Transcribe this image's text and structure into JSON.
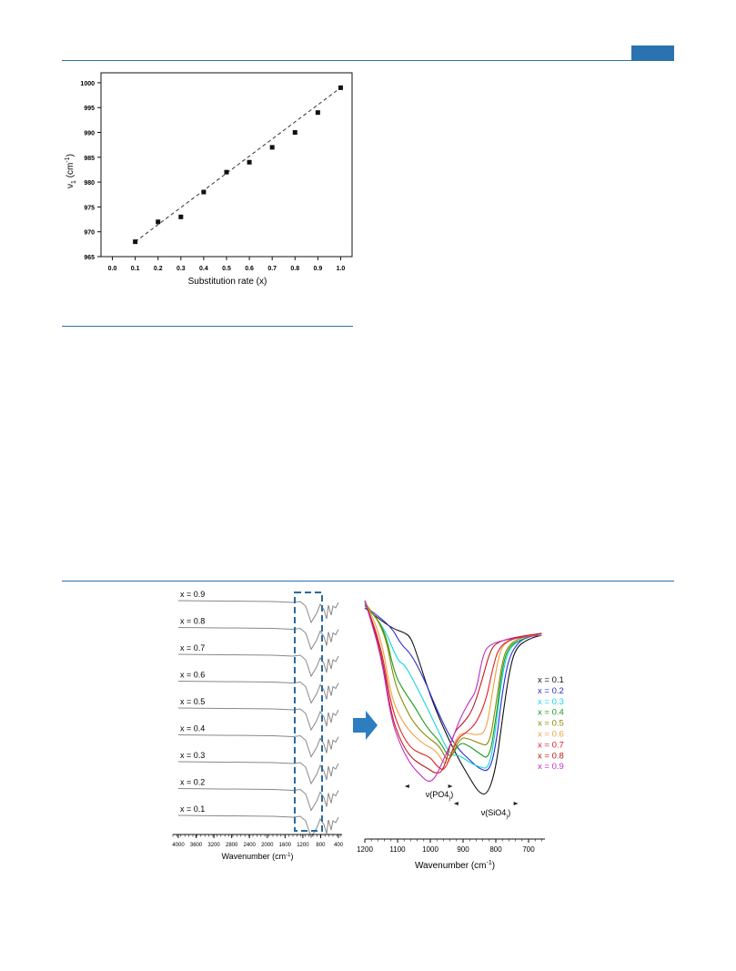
{
  "header": {
    "accent_color": "#2a73b0"
  },
  "figure_top": {
    "chart_data": {
      "type": "scatter",
      "ylabel": "ν1 (cm-1)",
      "xlabel": "Substitution rate (x)",
      "x": [
        0.1,
        0.2,
        0.3,
        0.4,
        0.5,
        0.6,
        0.7,
        0.8,
        0.9,
        1.0
      ],
      "y": [
        968,
        972,
        973,
        978,
        982,
        984,
        987,
        990,
        994,
        999
      ],
      "fit_line": {
        "x": [
          0.1,
          1.0
        ],
        "y": [
          968,
          999
        ],
        "style": "dashed"
      },
      "xlim": [
        0.0,
        1.0
      ],
      "ylim": [
        965,
        1000
      ],
      "xticks": [
        "0.0",
        "0.1",
        "0.2",
        "0.3",
        "0.4",
        "0.5",
        "0.6",
        "0.7",
        "0.8",
        "0.9",
        "1.0"
      ],
      "yticks": [
        "965",
        "970",
        "975",
        "980",
        "985",
        "990",
        "995",
        "1000"
      ]
    }
  },
  "figure_bottom": {
    "left_panel": {
      "chart_data": {
        "type": "line",
        "xlabel": "Wavenumber (cm-1)",
        "xticks": [
          "4000",
          "3600",
          "3200",
          "2800",
          "2400",
          "2000",
          "1600",
          "1200",
          "800",
          "400"
        ],
        "series": [
          {
            "name": "x = 0.9"
          },
          {
            "name": "x = 0.8"
          },
          {
            "name": "x = 0.7"
          },
          {
            "name": "x = 0.6"
          },
          {
            "name": "x = 0.5"
          },
          {
            "name": "x = 0.4"
          },
          {
            "name": "x = 0.3"
          },
          {
            "name": "x = 0.2"
          },
          {
            "name": "x = 0.1"
          }
        ],
        "highlight_box": {
          "from": 1200,
          "to": 700,
          "color": "#2a6a9c"
        }
      }
    },
    "arrow_color": "#2d7dc0",
    "right_panel": {
      "chart_data": {
        "type": "line",
        "xlabel": "Wavenumber (cm-1)",
        "xlim": [
          1200,
          650
        ],
        "xticks": [
          "1200",
          "1100",
          "1000",
          "900",
          "800",
          "700"
        ],
        "series": [
          {
            "name": "x = 0.1",
            "color": "#111111"
          },
          {
            "name": "x = 0.2",
            "color": "#2b2bd6"
          },
          {
            "name": "x = 0.3",
            "color": "#14d6e0"
          },
          {
            "name": "x = 0.4",
            "color": "#1a9a1a"
          },
          {
            "name": "x = 0.5",
            "color": "#8a8a00"
          },
          {
            "name": "x = 0.6",
            "color": "#f0a040"
          },
          {
            "name": "x = 0.7",
            "color": "#e02020"
          },
          {
            "name": "x = 0.8",
            "color": "#c01818"
          },
          {
            "name": "x = 0.9",
            "color": "#c02cc8"
          }
        ],
        "annotations": [
          {
            "text": "ν(PO4)",
            "from": 1070,
            "to": 940
          },
          {
            "text": "ν(SiO4)",
            "from": 920,
            "to": 740
          }
        ]
      }
    }
  }
}
